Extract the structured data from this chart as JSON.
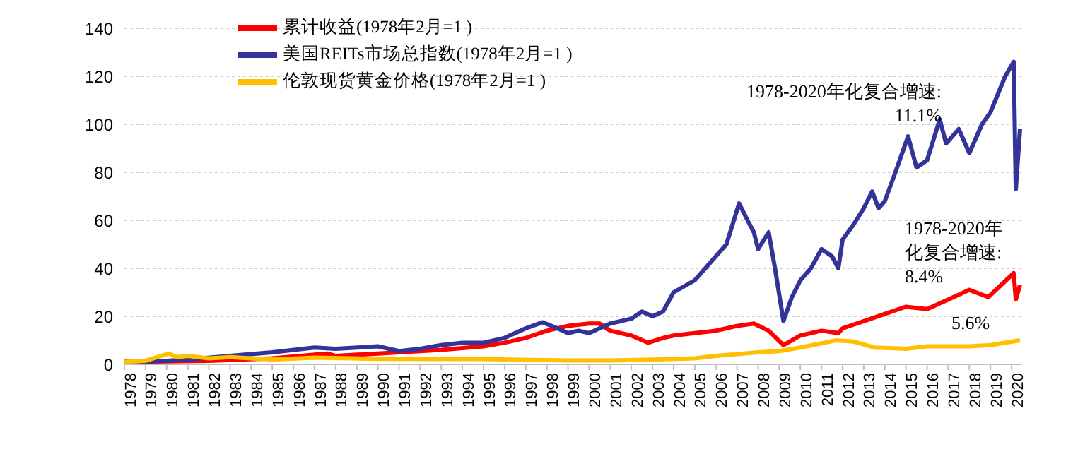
{
  "chart_data": {
    "type": "line",
    "x": [
      1978,
      1980,
      1981,
      1983,
      1985,
      1987,
      1988,
      1990,
      1991,
      1992,
      1993,
      1994,
      1995,
      1996,
      1997,
      1997.8,
      1998.5,
      1999,
      1999.5,
      2000,
      2000.5,
      2001,
      2002,
      2002.5,
      2003,
      2003.5,
      2004,
      2005,
      2005.5,
      2006,
      2006.5,
      2007.1,
      2007.5,
      2007.8,
      2008,
      2008.5,
      2008.8,
      2009.2,
      2009.6,
      2010,
      2010.5,
      2011,
      2011.5,
      2011.8,
      2012,
      2012.5,
      2013,
      2013.4,
      2013.7,
      2014,
      2014.5,
      2015.1,
      2015.5,
      2016,
      2016.6,
      2016.9,
      2017.5,
      2018,
      2018.6,
      2019,
      2019.7,
      2020.1,
      2020.2,
      2020.4
    ],
    "series": [
      {
        "name": "累计收益(1978年2月=1 )",
        "color": "#ff0000",
        "x": [
          1978,
          1982,
          1985,
          1987.6,
          1988,
          1990,
          1991,
          1993,
          1995,
          1996,
          1997,
          1998,
          1999,
          2000,
          2000.5,
          2001,
          2002,
          2002.8,
          2003.5,
          2004,
          2005,
          2006,
          2007,
          2007.8,
          2008.5,
          2009.2,
          2010,
          2011,
          2011.8,
          2012,
          2013,
          2014,
          2015,
          2016,
          2017,
          2018,
          2018.9,
          2019.5,
          2020.1,
          2020.2,
          2020.4
        ],
        "values": [
          1,
          1.5,
          2.5,
          4.5,
          3.5,
          4.5,
          5,
          6,
          7.5,
          9,
          11,
          14,
          16,
          17,
          17,
          14,
          12,
          9,
          11,
          12,
          13,
          14,
          16,
          17,
          14,
          8,
          12,
          14,
          13,
          15,
          18,
          21,
          24,
          23,
          27,
          31,
          28,
          33,
          38,
          27,
          33
        ]
      },
      {
        "name": "美国REITs市场总指数(1978年2月=1 )",
        "color": "#333399",
        "values": [
          1,
          1.5,
          2,
          3.5,
          5,
          7,
          6.5,
          7.5,
          5.5,
          6.5,
          8,
          9,
          9,
          11,
          15,
          17.5,
          15,
          13,
          14,
          13,
          15,
          17,
          19,
          22,
          20,
          22,
          30,
          35,
          40,
          45,
          50,
          67,
          60,
          55,
          48,
          55,
          40,
          18,
          28,
          35,
          40,
          48,
          45,
          40,
          52,
          58,
          65,
          72,
          65,
          68,
          80,
          95,
          82,
          85,
          102,
          92,
          98,
          88,
          100,
          105,
          120,
          126,
          73,
          98
        ]
      },
      {
        "name": "伦敦现货黄金价格(1978年2月=1 )",
        "color": "#ffc000",
        "x": [
          1978,
          1979,
          1980.1,
          1980.5,
          1981,
          1982,
          1983,
          1985,
          1987,
          1990,
          1995,
          1999,
          2001,
          2003,
          2005,
          2006,
          2008,
          2009,
          2010,
          2011.7,
          2012.5,
          2013.5,
          2015,
          2016,
          2018,
          2019,
          2020.4
        ],
        "values": [
          1,
          1.5,
          4.5,
          3,
          3.5,
          2.5,
          3,
          2,
          2.8,
          2.3,
          2.2,
          1.6,
          1.6,
          2,
          2.5,
          3.5,
          5,
          5.5,
          7,
          10,
          9.5,
          7,
          6.5,
          7.5,
          7.5,
          8,
          10
        ]
      }
    ],
    "xlim": [
      1978,
      2020.5
    ],
    "xticks": [
      1978,
      1979,
      1980,
      1981,
      1982,
      1983,
      1984,
      1985,
      1986,
      1987,
      1988,
      1989,
      1990,
      1991,
      1992,
      1993,
      1994,
      1995,
      1996,
      1997,
      1998,
      1999,
      2000,
      2001,
      2002,
      2003,
      2004,
      2005,
      2006,
      2007,
      2008,
      2009,
      2010,
      2011,
      2012,
      2013,
      2014,
      2015,
      2016,
      2017,
      2018,
      2019,
      2020
    ],
    "ylim": [
      0,
      140
    ],
    "yticks": [
      0,
      20,
      40,
      60,
      80,
      100,
      120,
      140
    ],
    "grid": "y",
    "legend": "top left",
    "marker": "none",
    "line_style": "solid",
    "annotations": [
      "1978-2020年化复合增速:\n11.1%",
      "1978-2020年化复合增速:\n8.4%",
      "5.6%"
    ]
  }
}
